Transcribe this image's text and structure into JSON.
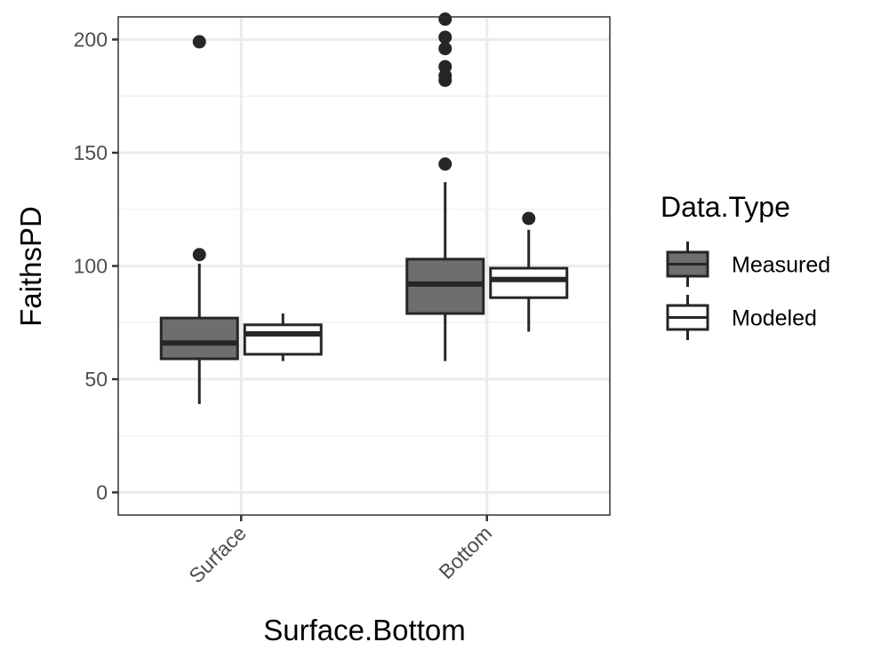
{
  "chart_data": {
    "type": "boxplot",
    "xlabel": "Surface.Bottom",
    "ylabel": "FaithsPD",
    "categories": [
      "Surface",
      "Bottom"
    ],
    "y_ticks": [
      0,
      50,
      100,
      150,
      200
    ],
    "ylim": [
      -10,
      210
    ],
    "grid": true,
    "legend": {
      "title": "Data.Type",
      "position": "right"
    },
    "series": [
      {
        "name": "Measured",
        "fill": "#6e6e6e",
        "boxes": [
          {
            "category": "Surface",
            "whisker_low": 39,
            "q1": 59,
            "median": 66,
            "q3": 77,
            "whisker_high": 101,
            "outliers": [
              105,
              199
            ]
          },
          {
            "category": "Bottom",
            "whisker_low": 58,
            "q1": 79,
            "median": 92,
            "q3": 103,
            "whisker_high": 137,
            "outliers": [
              145,
              182,
              184,
              188,
              196,
              201,
              209
            ]
          }
        ]
      },
      {
        "name": "Modeled",
        "fill": "#ffffff",
        "boxes": [
          {
            "category": "Surface",
            "whisker_low": 58,
            "q1": 61,
            "median": 70,
            "q3": 74,
            "whisker_high": 79,
            "outliers": []
          },
          {
            "category": "Bottom",
            "whisker_low": 71,
            "q1": 86,
            "median": 94,
            "q3": 99,
            "whisker_high": 116,
            "outliers": [
              121
            ]
          }
        ]
      }
    ]
  },
  "colors": {
    "panel_border": "#333333",
    "grid_major": "#ebebeb",
    "grid_minor": "#f2f2f2",
    "box_line": "#262626",
    "point": "#262626"
  }
}
